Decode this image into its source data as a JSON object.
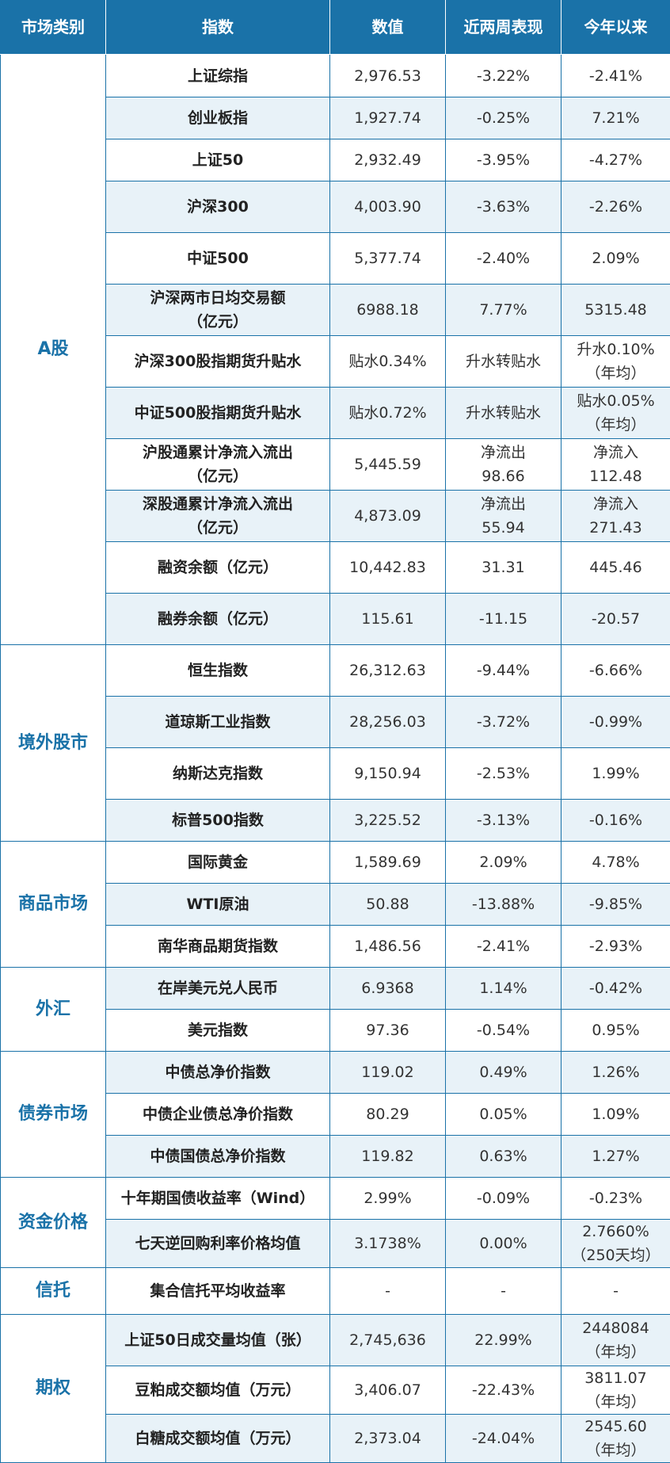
{
  "headers": [
    "市场类别",
    "指数",
    "数值",
    "近两周表现",
    "今年以来"
  ],
  "groups": [
    {
      "category": "A股",
      "rows": [
        {
          "name": "上证综指",
          "value": "2,976.53",
          "recent": "-3.22%",
          "ytd": "-2.41%",
          "h": 54
        },
        {
          "name": "创业板指",
          "value": "1,927.74",
          "recent": "-0.25%",
          "ytd": "7.21%",
          "h": 53
        },
        {
          "name": "上证50",
          "value": "2,932.49",
          "recent": "-3.95%",
          "ytd": "-4.27%",
          "h": 53
        },
        {
          "name": "沪深300",
          "value": "4,003.90",
          "recent": "-3.63%",
          "ytd": "-2.26%",
          "h": 65
        },
        {
          "name": "中证500",
          "value": "5,377.74",
          "recent": "-2.40%",
          "ytd": "2.09%",
          "h": 65
        },
        {
          "name": "沪深两市日均交易额\n（亿元）",
          "value": "6988.18",
          "recent": "7.77%",
          "ytd": "5315.48",
          "h": 65
        },
        {
          "name": "沪深300股指期货升贴水",
          "value": "贴水0.34%",
          "recent": "升水转贴水",
          "ytd": "升水0.10%\n（年均）",
          "h": 65
        },
        {
          "name": "中证500股指期货升贴水",
          "value": "贴水0.72%",
          "recent": "升水转贴水",
          "ytd": "贴水0.05%\n（年均）",
          "h": 65
        },
        {
          "name": "沪股通累计净流入流出\n（亿元）",
          "value": "5,445.59",
          "recent": "净流出\n98.66",
          "ytd": "净流入\n112.48",
          "h": 65
        },
        {
          "name": "深股通累计净流入流出\n（亿元）",
          "value": "4,873.09",
          "recent": "净流出\n55.94",
          "ytd": "净流入\n271.43",
          "h": 65
        },
        {
          "name": "融资余额（亿元）",
          "value": "10,442.83",
          "recent": "31.31",
          "ytd": "445.46",
          "h": 65
        },
        {
          "name": "融券余额（亿元）",
          "value": "115.61",
          "recent": "-11.15",
          "ytd": "-20.57",
          "h": 65
        }
      ]
    },
    {
      "category": "境外股市",
      "rows": [
        {
          "name": "恒生指数",
          "value": "26,312.63",
          "recent": "-9.44%",
          "ytd": "-6.66%",
          "h": 65
        },
        {
          "name": "道琼斯工业指数",
          "value": "28,256.03",
          "recent": "-3.72%",
          "ytd": "-0.99%",
          "h": 65
        },
        {
          "name": "纳斯达克指数",
          "value": "9,150.94",
          "recent": "-2.53%",
          "ytd": "1.99%",
          "h": 65
        },
        {
          "name": "标普500指数",
          "value": "3,225.52",
          "recent": "-3.13%",
          "ytd": "-0.16%",
          "h": 53
        }
      ]
    },
    {
      "category": "商品市场",
      "rows": [
        {
          "name": "国际黄金",
          "value": "1,589.69",
          "recent": "2.09%",
          "ytd": "4.78%",
          "h": 53
        },
        {
          "name": "WTI原油",
          "value": "50.88",
          "recent": "-13.88%",
          "ytd": "-9.85%",
          "h": 53
        },
        {
          "name": "南华商品期货指数",
          "value": "1,486.56",
          "recent": "-2.41%",
          "ytd": "-2.93%",
          "h": 53
        }
      ]
    },
    {
      "category": "外汇",
      "rows": [
        {
          "name": "在岸美元兑人民币",
          "value": "6.9368",
          "recent": "1.14%",
          "ytd": "-0.42%",
          "h": 53
        },
        {
          "name": "美元指数",
          "value": "97.36",
          "recent": "-0.54%",
          "ytd": "0.95%",
          "h": 53
        }
      ]
    },
    {
      "category": "债券市场",
      "rows": [
        {
          "name": "中债总净价指数",
          "value": "119.02",
          "recent": "0.49%",
          "ytd": "1.26%",
          "h": 53
        },
        {
          "name": "中债企业债总净价指数",
          "value": "80.29",
          "recent": "0.05%",
          "ytd": "1.09%",
          "h": 53
        },
        {
          "name": "中债国债总净价指数",
          "value": "119.82",
          "recent": "0.63%",
          "ytd": "1.27%",
          "h": 53
        }
      ]
    },
    {
      "category": "资金价格",
      "rows": [
        {
          "name": "十年期国债收益率（Wind）",
          "value": "2.99%",
          "recent": "-0.09%",
          "ytd": "-0.23%",
          "h": 53
        },
        {
          "name": "七天逆回购利率价格均值",
          "value": "3.1738%",
          "recent": "0.00%",
          "ytd": "2.7660%\n（250天均）",
          "h": 59
        }
      ]
    },
    {
      "category": "信托",
      "rows": [
        {
          "name": "集合信托平均收益率",
          "value": "-",
          "recent": "-",
          "ytd": "-",
          "h": 59
        }
      ]
    },
    {
      "category": "期权",
      "rows": [
        {
          "name": "上证50日成交量均值（张）",
          "value": "2,745,636",
          "recent": "22.99%",
          "ytd": "2448084\n（年均）",
          "h": 65
        },
        {
          "name": "豆粕成交额均值（万元）",
          "value": "3,406.07",
          "recent": "-22.43%",
          "ytd": "3811.07\n（年均）",
          "h": 61
        },
        {
          "name": "白糖成交额均值（万元）",
          "value": "2,373.04",
          "recent": "-24.04%",
          "ytd": "2545.60\n（年均）",
          "h": 61
        }
      ]
    }
  ]
}
